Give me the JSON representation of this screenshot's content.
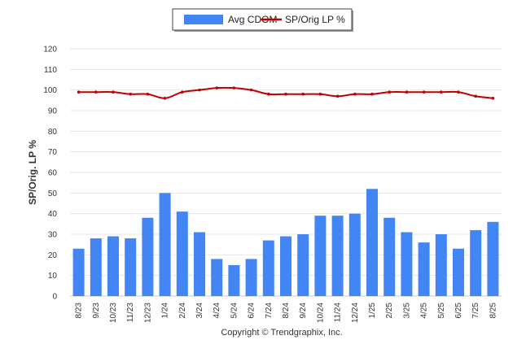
{
  "chart_data": {
    "type": "bar",
    "categories": [
      "8/23",
      "9/23",
      "10/23",
      "11/23",
      "12/23",
      "1/24",
      "2/24",
      "3/24",
      "4/24",
      "5/24",
      "6/24",
      "7/24",
      "8/24",
      "9/24",
      "10/24",
      "11/24",
      "12/24",
      "1/25",
      "2/25",
      "3/25",
      "4/25",
      "5/25",
      "6/25",
      "7/25",
      "8/25"
    ],
    "series": [
      {
        "name": "Avg CDOM",
        "type": "bar",
        "color": "#4285f4",
        "values": [
          23,
          28,
          29,
          28,
          38,
          50,
          41,
          31,
          18,
          15,
          18,
          27,
          29,
          30,
          39,
          39,
          40,
          52,
          38,
          31,
          26,
          30,
          23,
          32,
          36
        ]
      },
      {
        "name": "SP/Orig LP %",
        "type": "line",
        "color": "#c00000",
        "values": [
          99,
          99,
          99,
          98,
          98,
          96,
          99,
          100,
          101,
          101,
          100,
          98,
          98,
          98,
          98,
          97,
          98,
          98,
          99,
          99,
          99,
          99,
          99,
          97,
          96
        ]
      }
    ],
    "xlabel": "",
    "ylabel": "SP/Orig. LP %",
    "ylim": [
      0,
      120
    ],
    "yticks": [
      0,
      10,
      20,
      30,
      40,
      50,
      60,
      70,
      80,
      90,
      100,
      110,
      120
    ],
    "grid": true,
    "legend": "top-center"
  },
  "legend": {
    "bar_label": "Avg CDOM",
    "line_label": "SP/Orig LP %"
  },
  "credit": "Copyright © Trendgraphix, Inc."
}
